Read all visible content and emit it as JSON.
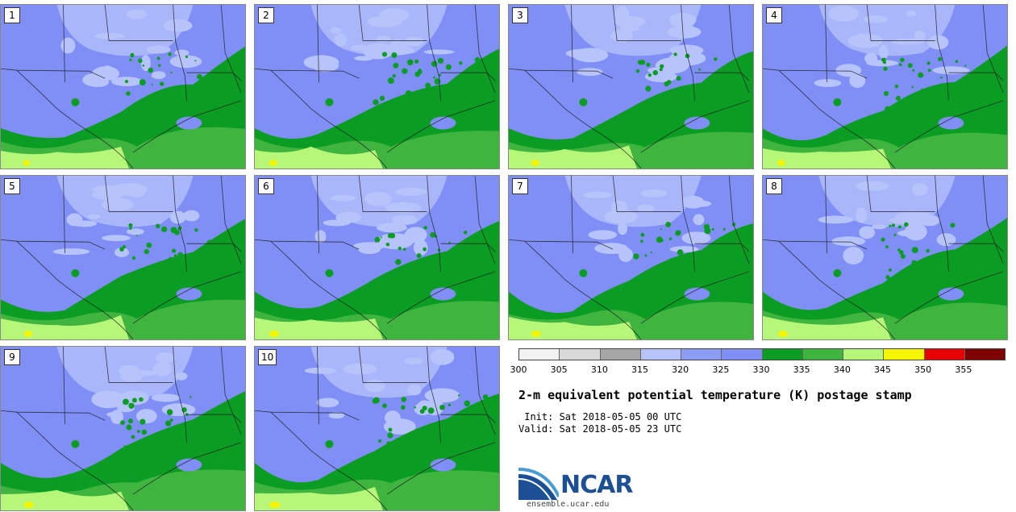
{
  "colors": {
    "light_blue": "#b7c3fb",
    "mid_blue": "#7f8ff5",
    "dark_green": "#0a9c23",
    "med_green": "#3fb43f",
    "light_green": "#b6f77a",
    "yellow": "#f5f500",
    "border_black": "#1a1a1a",
    "border_gray": "#555555"
  },
  "stamps": [
    {
      "label": "1"
    },
    {
      "label": "2"
    },
    {
      "label": "3"
    },
    {
      "label": "4"
    },
    {
      "label": "5"
    },
    {
      "label": "6"
    },
    {
      "label": "7"
    },
    {
      "label": "8"
    },
    {
      "label": "9"
    },
    {
      "label": "10"
    }
  ],
  "colorbar": {
    "colors": [
      "#f2f2f2",
      "#d9d9d9",
      "#a6a6a6",
      "#b7c3fb",
      "#8c9cf7",
      "#7f8ff5",
      "#0a9c23",
      "#3fb43f",
      "#b6f77a",
      "#f5f500",
      "#e60000",
      "#800000"
    ],
    "ticks": [
      "300",
      "305",
      "310",
      "315",
      "320",
      "325",
      "330",
      "335",
      "340",
      "345",
      "350",
      "355"
    ]
  },
  "title": "2-m equivalent potential temperature (K) postage stamp",
  "init": " Init: Sat 2018-05-05 00 UTC",
  "valid": "Valid: Sat 2018-05-05 23 UTC",
  "logo": {
    "word": "NCAR",
    "url": "ensemble.ucar.edu"
  }
}
